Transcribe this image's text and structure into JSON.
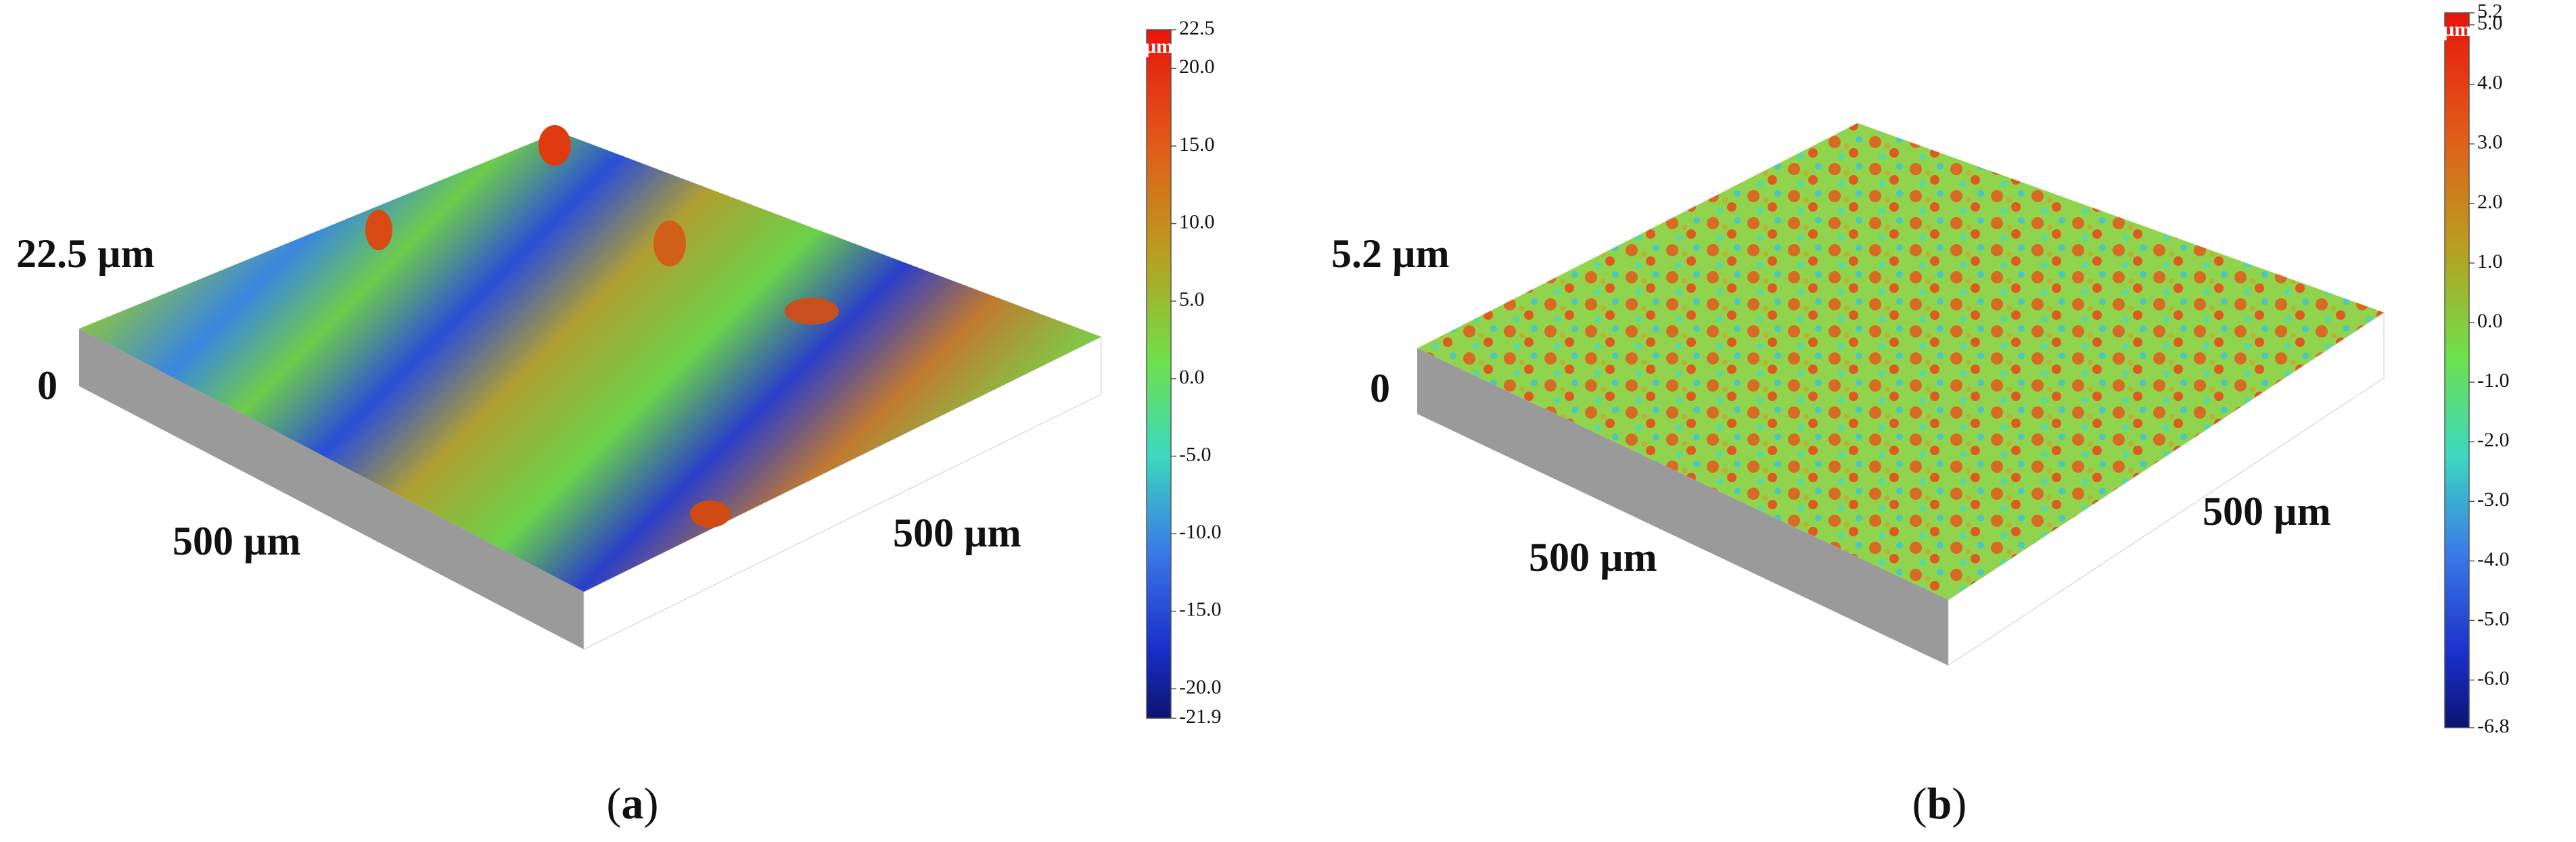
{
  "panels": [
    {
      "caption_letter": "a",
      "z_max_label": "22.5 µm",
      "z_min_label": "0",
      "x_label": "500 µm",
      "y_label": "500 µm",
      "colorbar": {
        "unit": "µm",
        "ticks": [
          22.5,
          {
            "value": 20,
            "label": "20.0"
          },
          {
            "value": 15,
            "label": "15.0"
          },
          {
            "value": 10,
            "label": "10.0"
          },
          {
            "value": 5,
            "label": "5.0"
          },
          {
            "value": 0,
            "label": "0.0"
          },
          {
            "value": -5,
            "label": "-5.0"
          },
          {
            "value": -10,
            "label": "-10.0"
          },
          {
            "value": -15,
            "label": "-15.0"
          },
          {
            "value": -20,
            "label": "-20.0"
          },
          -21.9
        ]
      }
    },
    {
      "caption_letter": "b",
      "z_max_label": "5.2 µm",
      "z_min_label": "0",
      "x_label": "500 µm",
      "y_label": "500 µm",
      "colorbar": {
        "unit": "µm",
        "ticks": [
          5.2,
          {
            "value": 5,
            "label": "5.0"
          },
          {
            "value": 4,
            "label": "4.0"
          },
          {
            "value": 3,
            "label": "3.0"
          },
          {
            "value": 2,
            "label": "2.0"
          },
          {
            "value": 1,
            "label": "1.0"
          },
          {
            "value": 0,
            "label": "0.0"
          },
          {
            "value": -1,
            "label": "-1.0"
          },
          {
            "value": -2,
            "label": "-2.0"
          },
          {
            "value": -3,
            "label": "-3.0"
          },
          {
            "value": -4,
            "label": "-4.0"
          },
          {
            "value": -5,
            "label": "-5.0"
          },
          {
            "value": -6,
            "label": "-6.0"
          },
          -6.8
        ]
      }
    }
  ]
}
